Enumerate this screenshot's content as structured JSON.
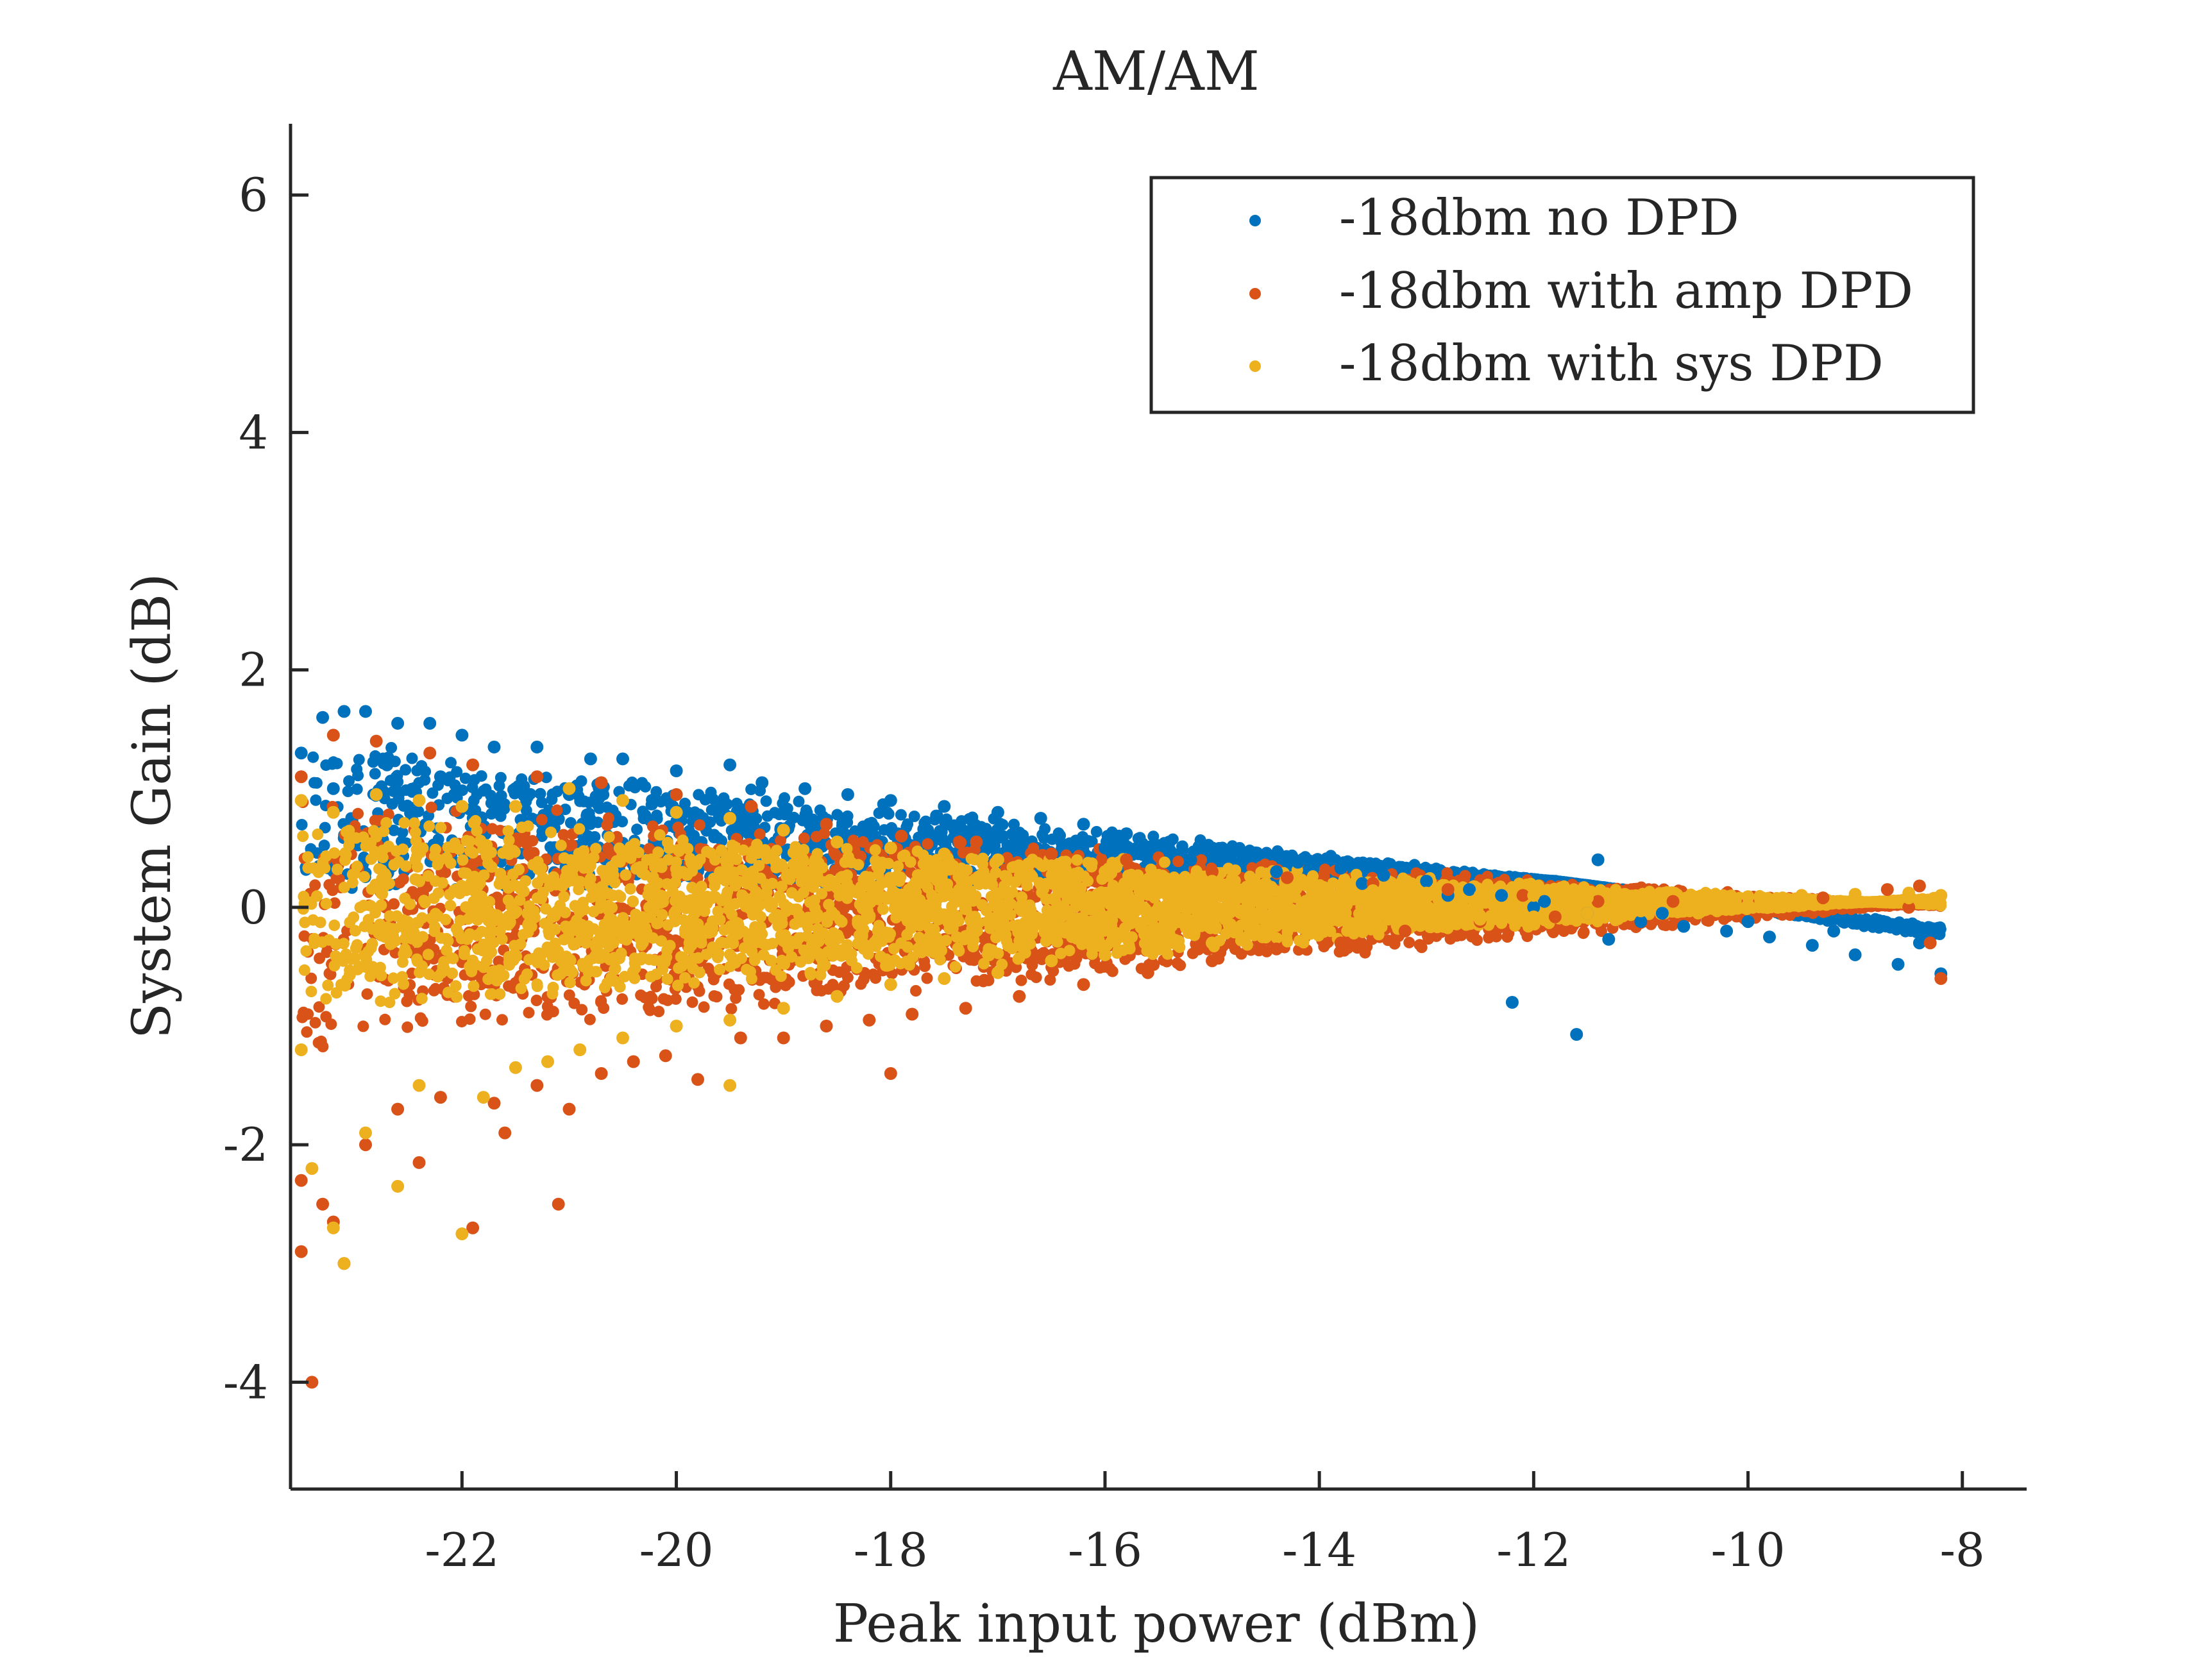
{
  "chart_data": {
    "type": "scatter",
    "title": "AM/AM",
    "xlabel": "Peak input power (dBm)",
    "ylabel": "System Gain (dB)",
    "xlim": [
      -23.6,
      -7.4
    ],
    "ylim": [
      -4.9,
      6.6
    ],
    "xticks": [
      -22,
      -20,
      -18,
      -16,
      -14,
      -12,
      -10,
      -8
    ],
    "yticks": [
      -4,
      -2,
      0,
      2,
      4,
      6
    ],
    "xtick_labels": [
      "-22",
      "-20",
      "-18",
      "-16",
      "-14",
      "-12",
      "-10",
      "-8"
    ],
    "ytick_labels": [
      "-4",
      "-2",
      "0",
      "2",
      "4",
      "6"
    ],
    "grid": false,
    "legend_position": "top-right",
    "colors": [
      "#0072BD",
      "#D95319",
      "#EDB120"
    ],
    "series": [
      {
        "name": "-18dbm no DPD",
        "color": "#0072BD",
        "points": [
          [
            -23.5,
            1.3
          ],
          [
            -23.3,
            1.6
          ],
          [
            -23.1,
            1.65
          ],
          [
            -22.9,
            1.65
          ],
          [
            -22.6,
            1.55
          ],
          [
            -22.3,
            1.55
          ],
          [
            -22.0,
            1.45
          ],
          [
            -21.7,
            1.35
          ],
          [
            -21.3,
            1.35
          ],
          [
            -20.8,
            1.25
          ],
          [
            -20.5,
            1.25
          ],
          [
            -20.0,
            1.15
          ],
          [
            -19.5,
            1.2
          ],
          [
            -19.2,
            1.05
          ],
          [
            -18.8,
            1.0
          ],
          [
            -18.4,
            0.95
          ],
          [
            -18.0,
            0.9
          ],
          [
            -17.5,
            0.85
          ],
          [
            -17.0,
            0.8
          ],
          [
            -16.6,
            0.75
          ],
          [
            -16.2,
            0.7
          ],
          [
            -15.8,
            0.62
          ],
          [
            -15.4,
            0.55
          ],
          [
            -15.0,
            0.5
          ],
          [
            -14.6,
            0.45
          ],
          [
            -14.2,
            0.38
          ],
          [
            -13.8,
            0.33
          ],
          [
            -13.4,
            0.27
          ],
          [
            -13.0,
            0.22
          ],
          [
            -12.6,
            0.15
          ],
          [
            -12.3,
            0.1
          ],
          [
            -11.9,
            0.05
          ],
          [
            -11.4,
            0.4
          ],
          [
            -11.5,
            -0.05
          ],
          [
            -11.0,
            -0.12
          ],
          [
            -10.6,
            -0.16
          ],
          [
            -10.2,
            -0.2
          ],
          [
            -9.8,
            -0.25
          ],
          [
            -9.4,
            -0.32
          ],
          [
            -9.0,
            -0.4
          ],
          [
            -8.6,
            -0.48
          ],
          [
            -8.2,
            -0.56
          ],
          [
            -12.2,
            -0.8
          ],
          [
            -11.6,
            -1.07
          ],
          [
            -11.3,
            -0.27
          ],
          [
            -23.2,
            1.0
          ],
          [
            -22.7,
            1.2
          ],
          [
            -22.2,
            1.1
          ],
          [
            -21.5,
            1.0
          ],
          [
            -21.0,
            0.95
          ],
          [
            -20.2,
            0.9
          ],
          [
            -19.6,
            0.85
          ],
          [
            -19.0,
            0.8
          ],
          [
            -18.2,
            0.7
          ],
          [
            -17.4,
            0.65
          ],
          [
            -16.8,
            0.6
          ],
          [
            -16.0,
            0.5
          ],
          [
            -15.2,
            0.4
          ],
          [
            -14.4,
            0.3
          ],
          [
            -13.6,
            0.2
          ],
          [
            -12.8,
            0.1
          ],
          [
            -12.0,
            0.0
          ],
          [
            -10.8,
            -0.05
          ],
          [
            -10.0,
            -0.12
          ],
          [
            -9.2,
            -0.2
          ],
          [
            -8.4,
            -0.3
          ]
        ]
      },
      {
        "name": "-18dbm with amp DPD",
        "color": "#D95319",
        "points": [
          [
            -23.5,
            1.1
          ],
          [
            -23.2,
            1.45
          ],
          [
            -22.8,
            1.4
          ],
          [
            -22.3,
            1.3
          ],
          [
            -21.9,
            1.2
          ],
          [
            -21.3,
            1.1
          ],
          [
            -20.7,
            1.05
          ],
          [
            -20.0,
            0.95
          ],
          [
            -19.3,
            0.85
          ],
          [
            -18.6,
            0.7
          ],
          [
            -17.9,
            0.6
          ],
          [
            -17.2,
            0.55
          ],
          [
            -16.5,
            0.45
          ],
          [
            -15.8,
            0.4
          ],
          [
            -15.0,
            0.3
          ],
          [
            -14.3,
            0.25
          ],
          [
            -13.5,
            0.2
          ],
          [
            -12.8,
            0.15
          ],
          [
            -12.1,
            0.1
          ],
          [
            -11.4,
            0.05
          ],
          [
            -10.7,
            0.05
          ],
          [
            -10.0,
            0.05
          ],
          [
            -9.3,
            0.08
          ],
          [
            -8.7,
            0.15
          ],
          [
            -8.4,
            0.18
          ],
          [
            -8.5,
            0.0
          ],
          [
            -8.3,
            -0.3
          ],
          [
            -8.2,
            -0.6
          ],
          [
            -23.5,
            -2.3
          ],
          [
            -23.5,
            -2.9
          ],
          [
            -23.3,
            -2.5
          ],
          [
            -23.2,
            -2.65
          ],
          [
            -23.1,
            -3.0
          ],
          [
            -22.9,
            -2.0
          ],
          [
            -22.6,
            -1.7
          ],
          [
            -22.4,
            -2.15
          ],
          [
            -22.2,
            -1.6
          ],
          [
            -21.9,
            -2.7
          ],
          [
            -21.7,
            -1.65
          ],
          [
            -21.6,
            -1.9
          ],
          [
            -21.3,
            -1.5
          ],
          [
            -21.1,
            -2.5
          ],
          [
            -21.0,
            -1.7
          ],
          [
            -20.7,
            -1.4
          ],
          [
            -20.4,
            -1.3
          ],
          [
            -20.1,
            -1.25
          ],
          [
            -19.8,
            -1.45
          ],
          [
            -19.4,
            -1.1
          ],
          [
            -19.0,
            -1.1
          ],
          [
            -18.6,
            -1.0
          ],
          [
            -18.2,
            -0.95
          ],
          [
            -18.0,
            -1.4
          ],
          [
            -17.8,
            -0.9
          ],
          [
            -17.3,
            -0.85
          ],
          [
            -16.8,
            -0.75
          ],
          [
            -16.2,
            -0.65
          ],
          [
            -15.6,
            -0.55
          ],
          [
            -15.0,
            -0.45
          ],
          [
            -14.4,
            -0.35
          ],
          [
            -13.8,
            -0.3
          ],
          [
            -13.2,
            -0.2
          ],
          [
            -12.5,
            -0.12
          ],
          [
            -11.8,
            -0.08
          ],
          [
            -23.4,
            -4.0
          ]
        ]
      },
      {
        "name": "-18dbm with sys DPD",
        "color": "#EDB120",
        "points": [
          [
            -23.5,
            0.9
          ],
          [
            -23.2,
            0.8
          ],
          [
            -22.8,
            0.95
          ],
          [
            -22.4,
            0.9
          ],
          [
            -22.0,
            0.85
          ],
          [
            -21.5,
            0.85
          ],
          [
            -21.0,
            1.0
          ],
          [
            -20.5,
            0.9
          ],
          [
            -20.0,
            0.8
          ],
          [
            -19.5,
            0.75
          ],
          [
            -19.0,
            0.65
          ],
          [
            -18.5,
            0.55
          ],
          [
            -18.0,
            0.5
          ],
          [
            -17.5,
            0.45
          ],
          [
            -17.0,
            0.4
          ],
          [
            -16.5,
            0.35
          ],
          [
            -16.0,
            0.3
          ],
          [
            -15.5,
            0.27
          ],
          [
            -15.0,
            0.22
          ],
          [
            -14.5,
            0.2
          ],
          [
            -14.0,
            0.17
          ],
          [
            -13.5,
            0.14
          ],
          [
            -13.0,
            0.12
          ],
          [
            -12.5,
            0.1
          ],
          [
            -12.0,
            0.1
          ],
          [
            -11.5,
            0.08
          ],
          [
            -11.0,
            0.07
          ],
          [
            -10.5,
            0.08
          ],
          [
            -10.0,
            0.09
          ],
          [
            -9.5,
            0.1
          ],
          [
            -9.0,
            0.11
          ],
          [
            -8.5,
            0.12
          ],
          [
            -8.2,
            0.1
          ],
          [
            -23.5,
            -1.2
          ],
          [
            -23.4,
            -2.2
          ],
          [
            -23.2,
            -2.7
          ],
          [
            -23.1,
            -3.0
          ],
          [
            -22.9,
            -1.9
          ],
          [
            -22.6,
            -2.35
          ],
          [
            -22.4,
            -1.5
          ],
          [
            -22.0,
            -2.75
          ],
          [
            -21.8,
            -1.6
          ],
          [
            -21.5,
            -1.35
          ],
          [
            -21.2,
            -1.3
          ],
          [
            -20.9,
            -1.2
          ],
          [
            -20.5,
            -1.1
          ],
          [
            -20.0,
            -1.0
          ],
          [
            -19.5,
            -1.5
          ],
          [
            -19.5,
            -0.95
          ],
          [
            -19.0,
            -0.85
          ],
          [
            -18.5,
            -0.75
          ],
          [
            -18.0,
            -0.65
          ],
          [
            -17.5,
            -0.6
          ],
          [
            -17.0,
            -0.55
          ],
          [
            -16.5,
            -0.45
          ],
          [
            -16.0,
            -0.4
          ],
          [
            -15.5,
            -0.35
          ],
          [
            -15.0,
            -0.3
          ],
          [
            -14.5,
            -0.25
          ],
          [
            -14.0,
            -0.2
          ],
          [
            -13.5,
            -0.15
          ],
          [
            -13.0,
            -0.12
          ],
          [
            -12.5,
            -0.1
          ],
          [
            -12.0,
            -0.08
          ],
          [
            -11.5,
            -0.05
          ],
          [
            -11.0,
            -0.03
          ],
          [
            -10.5,
            0.0
          ],
          [
            -10.0,
            0.02
          ],
          [
            -9.5,
            0.04
          ],
          [
            -9.0,
            0.06
          ],
          [
            -8.5,
            0.08
          ]
        ]
      }
    ]
  }
}
